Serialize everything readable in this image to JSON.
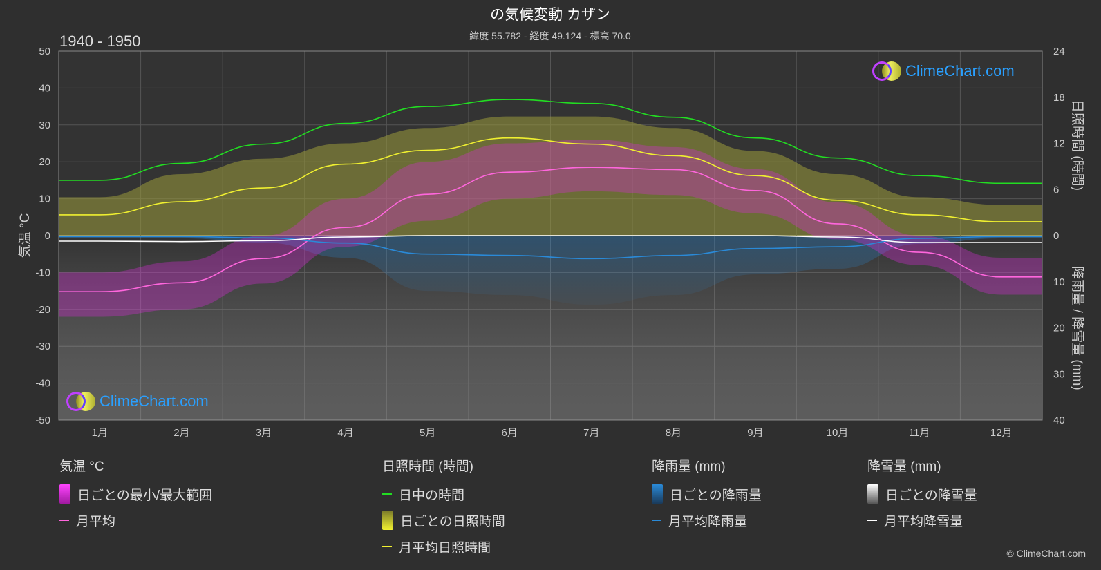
{
  "header": {
    "title": "の気候変動 カザン",
    "subtitle": "緯度 55.782 - 経度 49.124 - 標高 70.0",
    "period": "1940 - 1950"
  },
  "axes": {
    "left_title": "気温 °C",
    "right_top_title": "日照時間 (時間)",
    "right_bottom_title": "降雨量 / 降雪量 (mm)"
  },
  "chart_data": {
    "type": "line",
    "categories": [
      "1月",
      "2月",
      "3月",
      "4月",
      "5月",
      "6月",
      "7月",
      "8月",
      "9月",
      "10月",
      "11月",
      "12月"
    ],
    "left_axis": {
      "label": "気温 °C",
      "range": [
        -50,
        50
      ],
      "ticks": [
        50,
        40,
        30,
        20,
        10,
        0,
        -10,
        -20,
        -30,
        -40,
        -50
      ]
    },
    "right_axis_sun": {
      "label": "日照時間 (時間)",
      "range": [
        0,
        24
      ],
      "ticks": [
        24,
        18,
        12,
        6,
        0
      ]
    },
    "right_axis_precip": {
      "label": "降雨量 / 降雪量 (mm)",
      "range": [
        0,
        40
      ],
      "ticks": [
        0,
        10,
        20,
        30,
        40
      ]
    },
    "series": [
      {
        "name": "月平均",
        "unit": "°C",
        "color": "#ff66dd",
        "values": [
          -15.2,
          -12.8,
          -6.2,
          2.2,
          11.2,
          17.2,
          18.5,
          17.9,
          12.2,
          3.2,
          -4.5,
          -11.2
        ]
      },
      {
        "name": "日中の時間",
        "unit": "時間",
        "color": "#22dd22",
        "values": [
          7.2,
          9.4,
          11.9,
          14.6,
          16.8,
          17.7,
          17.2,
          15.4,
          12.7,
          10.1,
          7.8,
          6.8
        ]
      },
      {
        "name": "月平均日照時間",
        "unit": "時間",
        "color": "#f0f030",
        "values": [
          2.7,
          4.4,
          6.2,
          9.3,
          11.1,
          12.7,
          11.9,
          10.4,
          7.8,
          4.6,
          2.7,
          1.8
        ]
      },
      {
        "name": "月平均降雨量",
        "unit": "mm",
        "color": "#2a8ad8",
        "values": [
          0.2,
          0.2,
          0.5,
          1.6,
          4.0,
          4.3,
          5.0,
          4.3,
          2.8,
          2.4,
          0.6,
          0.2
        ]
      },
      {
        "name": "月平均降雪量",
        "unit": "mm",
        "color": "#ffffff",
        "values": [
          1.2,
          1.3,
          1.1,
          0.3,
          0.0,
          0.0,
          0.0,
          0.0,
          0.0,
          0.3,
          1.5,
          1.5
        ]
      }
    ],
    "daily_ranges": {
      "temp_max": [
        -10,
        -7,
        0,
        10,
        20,
        25,
        26,
        24,
        18,
        9,
        0,
        -6
      ],
      "temp_min": [
        -22,
        -20,
        -13,
        -3,
        4,
        10,
        12,
        11,
        6,
        -1,
        -8,
        -16
      ],
      "sunshine_max": [
        5,
        8,
        10,
        12,
        14,
        15.5,
        15.5,
        14,
        11,
        8,
        5,
        4
      ]
    },
    "grid": true
  },
  "legend": {
    "temp": {
      "title": "気温 °C",
      "daily_range": "日ごとの最小/最大範囲",
      "monthly_avg": "月平均"
    },
    "sun": {
      "title": "日照時間 (時間)",
      "daylight": "日中の時間",
      "daily_sun": "日ごとの日照時間",
      "monthly_avg_sun": "月平均日照時間"
    },
    "rain": {
      "title": "降雨量 (mm)",
      "daily_rain": "日ごとの降雨量",
      "monthly_avg_rain": "月平均降雨量"
    },
    "snow": {
      "title": "降雪量 (mm)",
      "daily_snow": "日ごとの降雪量",
      "monthly_avg_snow": "月平均降雪量"
    }
  },
  "branding": {
    "logo_text": "ClimeChart.com",
    "copyright": "© ClimeChart.com"
  },
  "colors": {
    "background": "#2f2f2f",
    "temp_range": "#d62ad6",
    "temp_avg": "#ff66dd",
    "daylight": "#22dd22",
    "sun_fill": "#b0b040",
    "sun_avg": "#f0f030",
    "rain": "#2a8ad8",
    "snow": "#ffffff",
    "logo": "#2aa0ff"
  }
}
